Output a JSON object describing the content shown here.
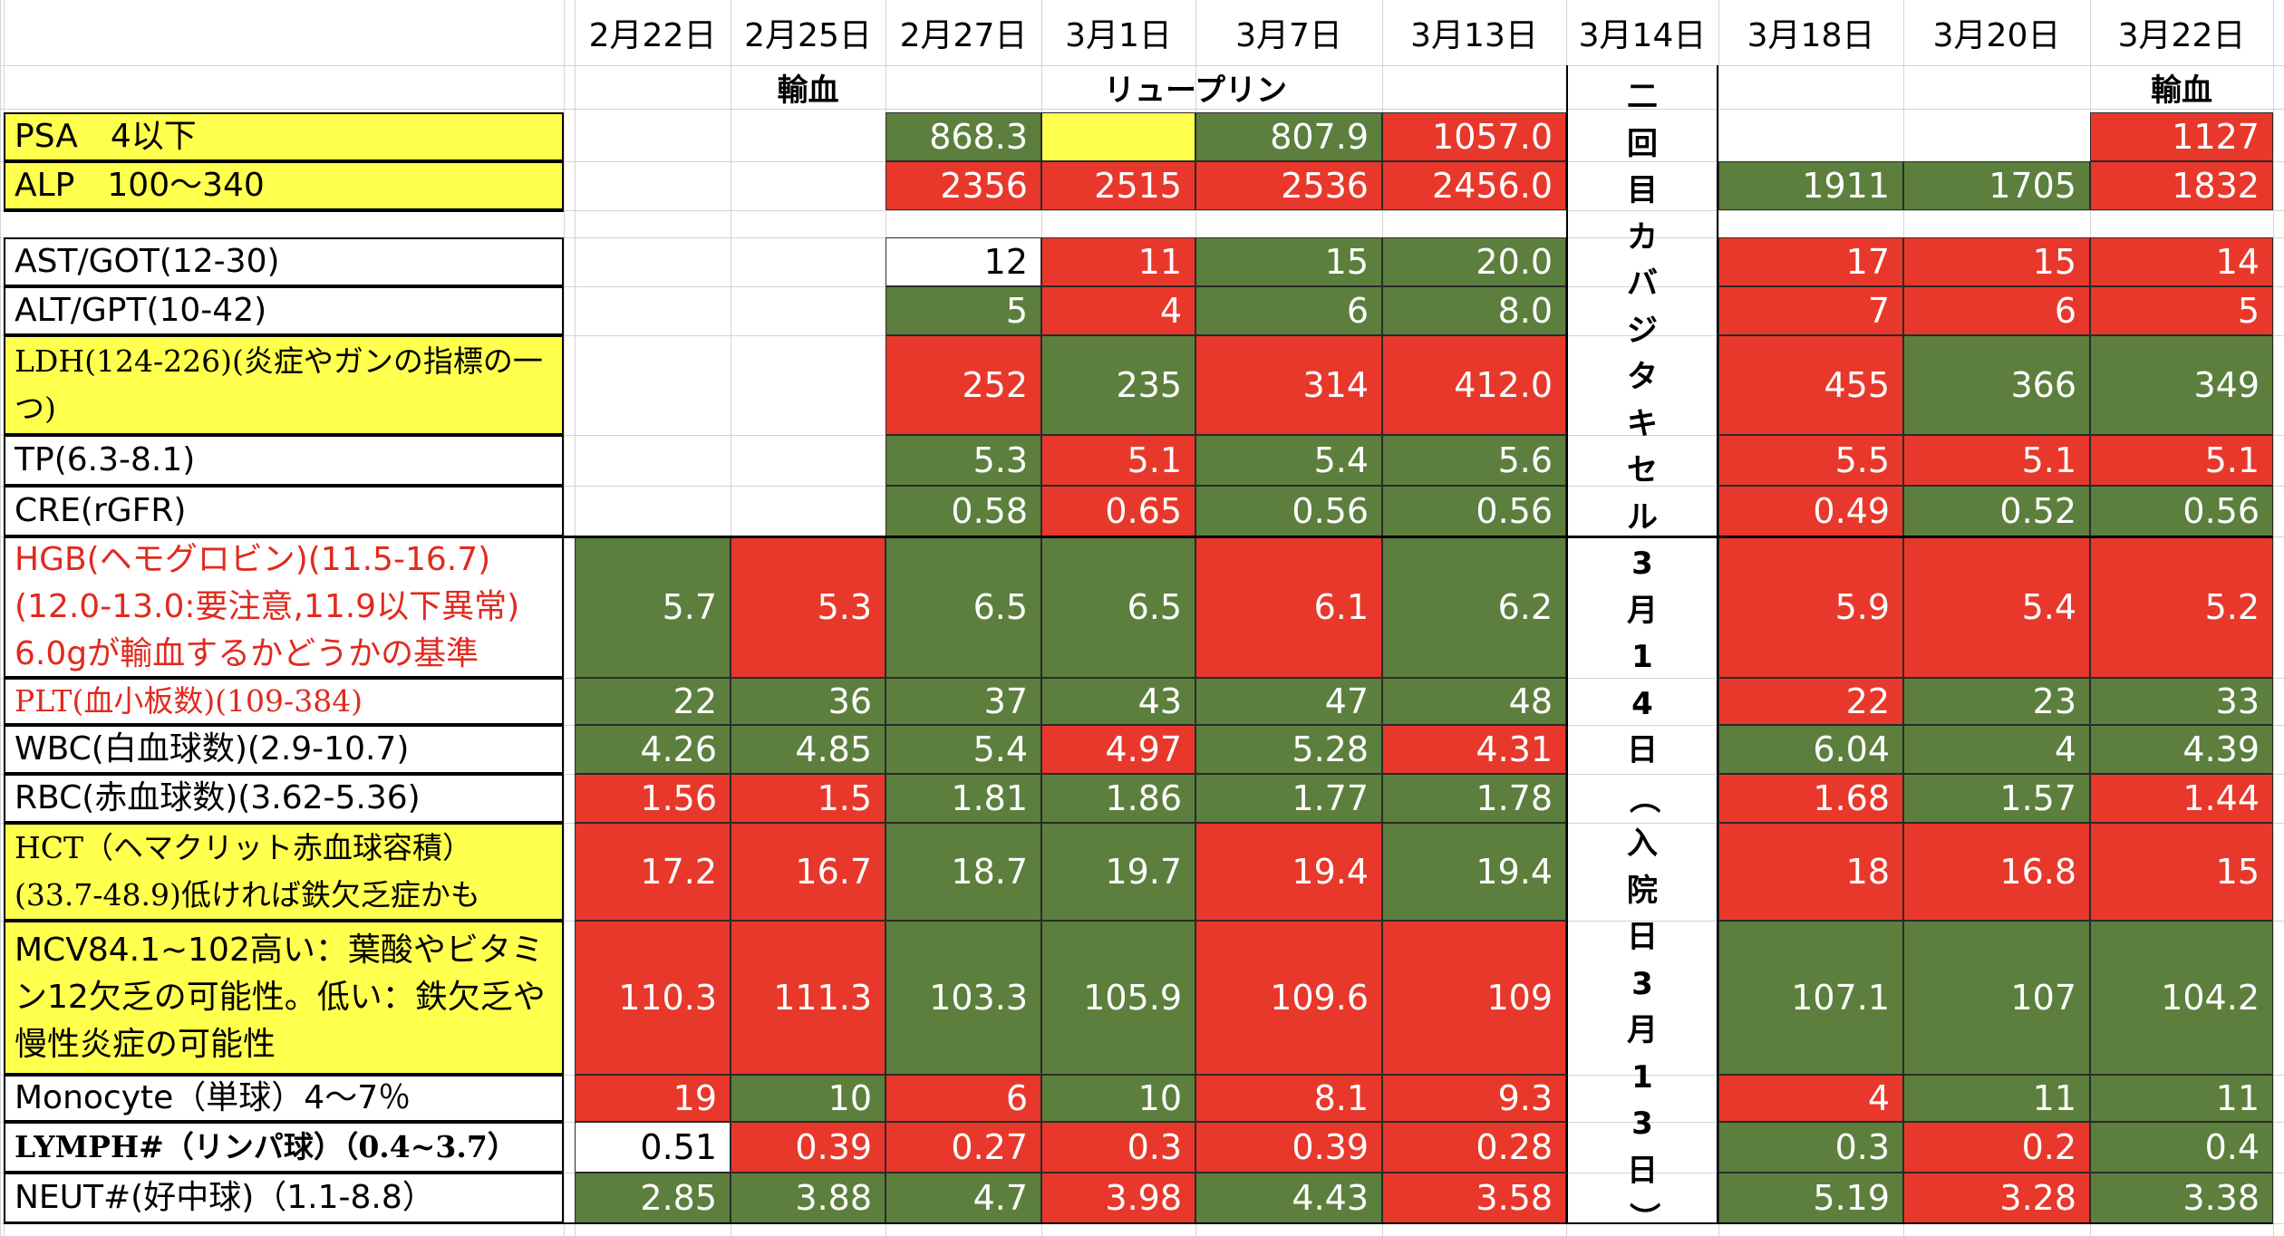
{
  "colors": {
    "green": "#5c7f3d",
    "red": "#e8382b",
    "yellow": "#ffff4d",
    "white": "#ffffff",
    "red_text": "#e02a1e"
  },
  "dates": [
    "2月22日",
    "2月25日",
    "2月27日",
    "3月1日",
    "3月7日",
    "3月13日",
    "3月14日",
    "3月18日",
    "3月20日",
    "3月22日"
  ],
  "notes_row": [
    {
      "col": 1,
      "text": "輸血"
    },
    {
      "col": 3,
      "text": "リュープリン"
    },
    {
      "col": 8,
      "text": "輸血"
    }
  ],
  "vertical_note": [
    "二",
    "回",
    "目",
    "カ",
    "バ",
    "ジ",
    "タ",
    "キ",
    "セ",
    "ル",
    "3",
    "月",
    "1",
    "4",
    "日",
    "（",
    "入",
    "院",
    "日",
    "3",
    "月",
    "1",
    "3",
    "日",
    "）"
  ],
  "rows": [
    {
      "label": "PSA　4以下",
      "style": "yellow",
      "cells": [
        [
          "",
          "none"
        ],
        [
          "",
          "none"
        ],
        [
          "868.3",
          "G"
        ],
        [
          "",
          "Y"
        ],
        [
          "807.9",
          "G"
        ],
        [
          "1057.0",
          "R"
        ],
        [
          "",
          "none"
        ],
        [
          "",
          "none"
        ],
        [
          "1127",
          "R"
        ]
      ]
    },
    {
      "label": "ALP　100～340",
      "style": "yellow",
      "cells": [
        [
          "",
          "none"
        ],
        [
          "",
          "none"
        ],
        [
          "2356",
          "R"
        ],
        [
          "2515",
          "R"
        ],
        [
          "2536",
          "R"
        ],
        [
          "2456.0",
          "R"
        ],
        [
          "1911",
          "G"
        ],
        [
          "1705",
          "G"
        ],
        [
          "1832",
          "R"
        ]
      ]
    },
    {
      "label": "",
      "style": "blank",
      "cells": [
        [
          "",
          "none"
        ],
        [
          "",
          "none"
        ],
        [
          "",
          "none"
        ],
        [
          "",
          "none"
        ],
        [
          "",
          "none"
        ],
        [
          "",
          "none"
        ],
        [
          "",
          "none"
        ],
        [
          "",
          "none"
        ],
        [
          "",
          "none"
        ]
      ]
    },
    {
      "label": "AST/GOT(12-30)",
      "style": "white",
      "cells": [
        [
          "",
          "none"
        ],
        [
          "",
          "none"
        ],
        [
          "12",
          "W"
        ],
        [
          "11",
          "R"
        ],
        [
          "15",
          "G"
        ],
        [
          "20.0",
          "G"
        ],
        [
          "17",
          "R"
        ],
        [
          "15",
          "R"
        ],
        [
          "14",
          "R"
        ]
      ]
    },
    {
      "label": "ALT/GPT(10-42)",
      "style": "white",
      "cells": [
        [
          "",
          "none"
        ],
        [
          "",
          "none"
        ],
        [
          "5",
          "G"
        ],
        [
          "4",
          "R"
        ],
        [
          "6",
          "G"
        ],
        [
          "8.0",
          "G"
        ],
        [
          "7",
          "R"
        ],
        [
          "6",
          "R"
        ],
        [
          "5",
          "R"
        ]
      ]
    },
    {
      "label": "LDH(124-226)(炎症やガンの指標の一つ)",
      "style": "yellow-serif",
      "cells": [
        [
          "",
          "none"
        ],
        [
          "",
          "none"
        ],
        [
          "252",
          "R"
        ],
        [
          "235",
          "G"
        ],
        [
          "314",
          "R"
        ],
        [
          "412.0",
          "R"
        ],
        [
          "455",
          "R"
        ],
        [
          "366",
          "G"
        ],
        [
          "349",
          "G"
        ]
      ]
    },
    {
      "label": "TP(6.3-8.1)",
      "style": "white",
      "cells": [
        [
          "",
          "none"
        ],
        [
          "",
          "none"
        ],
        [
          "5.3",
          "G"
        ],
        [
          "5.1",
          "R"
        ],
        [
          "5.4",
          "G"
        ],
        [
          "5.6",
          "G"
        ],
        [
          "5.5",
          "R"
        ],
        [
          "5.1",
          "R"
        ],
        [
          "5.1",
          "R"
        ]
      ]
    },
    {
      "label": "CRE(rGFR)",
      "style": "white",
      "cells": [
        [
          "",
          "none"
        ],
        [
          "",
          "none"
        ],
        [
          "0.58",
          "G"
        ],
        [
          "0.65",
          "R"
        ],
        [
          "0.56",
          "G"
        ],
        [
          "0.56",
          "G"
        ],
        [
          "0.49",
          "R"
        ],
        [
          "0.52",
          "G"
        ],
        [
          "0.56",
          "G"
        ]
      ]
    },
    {
      "label": "HGB(ヘモグロビン)(11.5-16.7)\n(12.0-13.0:要注意,11.9以下異常)\n6.0gが輸血するかどうかの基準",
      "style": "white-redtext",
      "cells": [
        [
          "5.7",
          "G"
        ],
        [
          "5.3",
          "R"
        ],
        [
          "6.5",
          "G"
        ],
        [
          "6.5",
          "G"
        ],
        [
          "6.1",
          "R"
        ],
        [
          "6.2",
          "G"
        ],
        [
          "5.9",
          "R"
        ],
        [
          "5.4",
          "R"
        ],
        [
          "5.2",
          "R"
        ]
      ]
    },
    {
      "label": "PLT(血小板数)(109-384)",
      "style": "white-redtext-serif",
      "cells": [
        [
          "22",
          "G"
        ],
        [
          "36",
          "G"
        ],
        [
          "37",
          "G"
        ],
        [
          "43",
          "G"
        ],
        [
          "47",
          "G"
        ],
        [
          "48",
          "G"
        ],
        [
          "22",
          "R"
        ],
        [
          "23",
          "G"
        ],
        [
          "33",
          "G"
        ]
      ]
    },
    {
      "label": "WBC(白血球数)(2.9-10.7)",
      "style": "white",
      "cells": [
        [
          "4.26",
          "G"
        ],
        [
          "4.85",
          "G"
        ],
        [
          "5.4",
          "G"
        ],
        [
          "4.97",
          "R"
        ],
        [
          "5.28",
          "G"
        ],
        [
          "4.31",
          "R"
        ],
        [
          "6.04",
          "G"
        ],
        [
          "4",
          "G"
        ],
        [
          "4.39",
          "G"
        ]
      ]
    },
    {
      "label": "RBC(赤血球数)(3.62-5.36)",
      "style": "white",
      "cells": [
        [
          "1.56",
          "R"
        ],
        [
          "1.5",
          "R"
        ],
        [
          "1.81",
          "G"
        ],
        [
          "1.86",
          "G"
        ],
        [
          "1.77",
          "G"
        ],
        [
          "1.78",
          "G"
        ],
        [
          "1.68",
          "R"
        ],
        [
          "1.57",
          "G"
        ],
        [
          "1.44",
          "R"
        ]
      ]
    },
    {
      "label": "HCT（ヘマクリット赤血球容積）\n(33.7-48.9)低ければ鉄欠乏症かも",
      "style": "yellow-serif",
      "cells": [
        [
          "17.2",
          "R"
        ],
        [
          "16.7",
          "R"
        ],
        [
          "18.7",
          "G"
        ],
        [
          "19.7",
          "G"
        ],
        [
          "19.4",
          "R"
        ],
        [
          "19.4",
          "G"
        ],
        [
          "18",
          "R"
        ],
        [
          "16.8",
          "R"
        ],
        [
          "15",
          "R"
        ]
      ]
    },
    {
      "label": "MCV84.1~102高い：葉酸やビタミン12欠乏の可能性。低い：鉄欠乏や慢性炎症の可能性",
      "style": "yellow",
      "cells": [
        [
          "110.3",
          "R"
        ],
        [
          "111.3",
          "R"
        ],
        [
          "103.3",
          "G"
        ],
        [
          "105.9",
          "G"
        ],
        [
          "109.6",
          "R"
        ],
        [
          "109",
          "R"
        ],
        [
          "107.1",
          "G"
        ],
        [
          "107",
          "G"
        ],
        [
          "104.2",
          "G"
        ]
      ]
    },
    {
      "label": "Monocyte（単球）4～7％",
      "style": "white",
      "cells": [
        [
          "19",
          "R"
        ],
        [
          "10",
          "G"
        ],
        [
          "6",
          "R"
        ],
        [
          "10",
          "G"
        ],
        [
          "8.1",
          "R"
        ],
        [
          "9.3",
          "R"
        ],
        [
          "4",
          "R"
        ],
        [
          "11",
          "G"
        ],
        [
          "11",
          "G"
        ]
      ]
    },
    {
      "label": "LYMPH#（リンパ球）（0.4~3.7）",
      "style": "white-bold-serif",
      "cells": [
        [
          "0.51",
          "W"
        ],
        [
          "0.39",
          "R"
        ],
        [
          "0.27",
          "R"
        ],
        [
          "0.3",
          "R"
        ],
        [
          "0.39",
          "R"
        ],
        [
          "0.28",
          "R"
        ],
        [
          "0.3",
          "G"
        ],
        [
          "0.2",
          "R"
        ],
        [
          "0.4",
          "G"
        ]
      ]
    },
    {
      "label": "NEUT#(好中球)（1.1-8.8）",
      "style": "white",
      "cells": [
        [
          "2.85",
          "G"
        ],
        [
          "3.88",
          "G"
        ],
        [
          "4.7",
          "G"
        ],
        [
          "3.98",
          "R"
        ],
        [
          "4.43",
          "G"
        ],
        [
          "3.58",
          "R"
        ],
        [
          "5.19",
          "G"
        ],
        [
          "3.28",
          "R"
        ],
        [
          "3.38",
          "G"
        ]
      ]
    }
  ]
}
